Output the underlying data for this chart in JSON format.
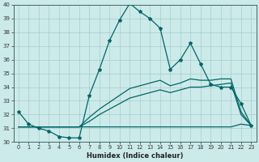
{
  "xlabel": "Humidex (Indice chaleur)",
  "ylabel": "",
  "background_color": "#cceaea",
  "grid_color": "#a8cccc",
  "line_color": "#006666",
  "xlim": [
    -0.5,
    23.5
  ],
  "ylim": [
    30,
    40
  ],
  "xticks": [
    0,
    1,
    2,
    3,
    4,
    5,
    6,
    7,
    8,
    9,
    10,
    11,
    12,
    13,
    14,
    15,
    16,
    17,
    18,
    19,
    20,
    21,
    22,
    23
  ],
  "yticks": [
    30,
    31,
    32,
    33,
    34,
    35,
    36,
    37,
    38,
    39,
    40
  ],
  "series1_x": [
    0,
    1,
    2,
    3,
    4,
    5,
    6,
    7,
    8,
    9,
    10,
    11,
    12,
    13,
    14,
    15,
    16,
    17,
    18,
    19,
    20,
    21,
    22,
    23
  ],
  "series1_y": [
    32.2,
    31.3,
    31.0,
    30.8,
    30.4,
    30.3,
    30.3,
    33.4,
    35.3,
    37.4,
    38.9,
    40.1,
    39.5,
    39.0,
    38.3,
    35.3,
    36.0,
    37.2,
    35.7,
    34.2,
    34.0,
    34.0,
    32.8,
    31.2
  ],
  "series2_x": [
    0,
    1,
    2,
    3,
    4,
    5,
    6,
    7,
    8,
    9,
    10,
    11,
    12,
    13,
    14,
    15,
    16,
    17,
    18,
    19,
    20,
    21,
    22,
    23
  ],
  "series2_y": [
    31.1,
    31.1,
    31.1,
    31.1,
    31.1,
    31.1,
    31.1,
    31.1,
    31.1,
    31.1,
    31.1,
    31.1,
    31.1,
    31.1,
    31.1,
    31.1,
    31.1,
    31.1,
    31.1,
    31.1,
    31.1,
    31.1,
    31.3,
    31.2
  ],
  "series3_x": [
    0,
    1,
    2,
    3,
    4,
    5,
    6,
    7,
    8,
    9,
    10,
    11,
    12,
    13,
    14,
    15,
    16,
    17,
    18,
    19,
    20,
    21,
    22,
    23
  ],
  "series3_y": [
    31.1,
    31.1,
    31.1,
    31.1,
    31.1,
    31.1,
    31.1,
    31.5,
    32.0,
    32.4,
    32.8,
    33.2,
    33.4,
    33.6,
    33.8,
    33.6,
    33.8,
    34.0,
    34.0,
    34.1,
    34.2,
    34.3,
    32.0,
    31.2
  ],
  "series4_x": [
    0,
    1,
    2,
    3,
    4,
    5,
    6,
    7,
    8,
    9,
    10,
    11,
    12,
    13,
    14,
    15,
    16,
    17,
    18,
    19,
    20,
    21,
    22,
    23
  ],
  "series4_y": [
    31.1,
    31.1,
    31.1,
    31.1,
    31.1,
    31.1,
    31.1,
    31.8,
    32.4,
    32.9,
    33.4,
    33.9,
    34.1,
    34.3,
    34.5,
    34.1,
    34.3,
    34.6,
    34.5,
    34.5,
    34.6,
    34.6,
    32.2,
    31.2
  ]
}
